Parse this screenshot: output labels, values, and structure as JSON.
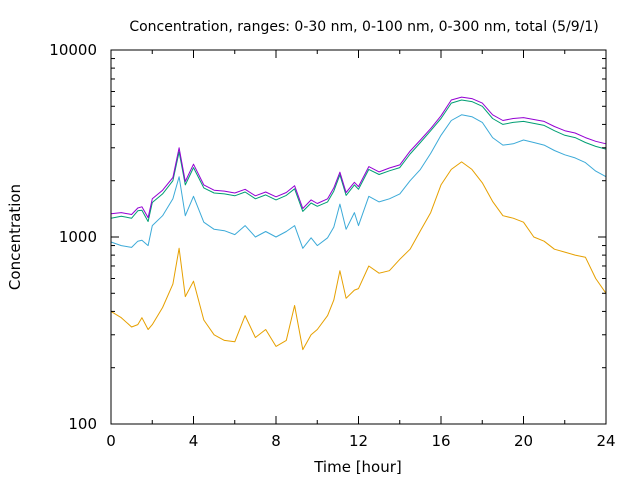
{
  "chart_data": {
    "type": "line",
    "title": "Concentration, ranges: 0-30 nm, 0-100 nm, 0-300 nm, total (5/9/1)",
    "xlabel": "Time [hour]",
    "ylabel": "Concentration",
    "xlim": [
      0,
      24
    ],
    "ylim": [
      100,
      10000
    ],
    "yscale": "log",
    "grid": false,
    "legend": "none",
    "x_ticks": [
      0,
      4,
      8,
      12,
      16,
      20,
      24
    ],
    "x_tick_labels": [
      "0",
      "4",
      "8",
      "12",
      "16",
      "20",
      "24"
    ],
    "y_ticks": [
      100,
      1000,
      10000
    ],
    "y_tick_labels": [
      "100",
      "1000",
      "10000"
    ],
    "x": [
      0,
      0.5,
      1,
      1.3,
      1.5,
      1.8,
      2,
      2.5,
      3,
      3.3,
      3.6,
      4,
      4.5,
      5,
      5.5,
      6,
      6.5,
      7,
      7.5,
      8,
      8.5,
      8.9,
      9.3,
      9.7,
      10,
      10.5,
      10.8,
      11.1,
      11.4,
      11.8,
      12,
      12.5,
      13,
      13.5,
      14,
      14.5,
      15,
      15.5,
      16,
      16.5,
      17,
      17.5,
      18,
      18.5,
      19,
      19.5,
      20,
      20.5,
      21,
      21.5,
      22,
      22.5,
      23,
      23.5,
      24
    ],
    "series": [
      {
        "color": "#e6a000",
        "values": [
          400,
          370,
          330,
          340,
          370,
          320,
          340,
          420,
          560,
          870,
          480,
          580,
          360,
          300,
          280,
          275,
          380,
          290,
          320,
          260,
          280,
          430,
          250,
          300,
          320,
          380,
          460,
          660,
          470,
          520,
          530,
          700,
          640,
          660,
          760,
          860,
          1080,
          1350,
          1900,
          2300,
          2520,
          2300,
          1950,
          1550,
          1300,
          1260,
          1200,
          1000,
          950,
          860,
          830,
          800,
          780,
          600,
          500
        ]
      },
      {
        "color": "#3caad8",
        "values": [
          940,
          900,
          880,
          950,
          960,
          900,
          1150,
          1300,
          1600,
          2100,
          1300,
          1650,
          1200,
          1100,
          1080,
          1030,
          1150,
          1000,
          1070,
          1000,
          1070,
          1150,
          870,
          990,
          900,
          990,
          1130,
          1500,
          1100,
          1350,
          1150,
          1650,
          1540,
          1600,
          1700,
          2000,
          2300,
          2800,
          3500,
          4200,
          4500,
          4400,
          4100,
          3400,
          3100,
          3150,
          3300,
          3200,
          3100,
          2900,
          2750,
          2650,
          2500,
          2250,
          2100
        ]
      },
      {
        "color": "#009e73",
        "values": [
          1260,
          1290,
          1260,
          1380,
          1390,
          1210,
          1530,
          1700,
          2000,
          2850,
          1900,
          2350,
          1830,
          1720,
          1700,
          1660,
          1740,
          1600,
          1680,
          1580,
          1670,
          1810,
          1370,
          1520,
          1460,
          1540,
          1760,
          2150,
          1670,
          1900,
          1800,
          2300,
          2160,
          2260,
          2350,
          2780,
          3200,
          3700,
          4300,
          5200,
          5400,
          5300,
          5000,
          4300,
          4000,
          4100,
          4150,
          4050,
          3950,
          3700,
          3500,
          3400,
          3200,
          3050,
          2950
        ]
      },
      {
        "color": "#9400d3",
        "values": [
          1330,
          1350,
          1320,
          1430,
          1450,
          1270,
          1600,
          1780,
          2080,
          3000,
          1980,
          2450,
          1900,
          1780,
          1760,
          1720,
          1800,
          1660,
          1740,
          1640,
          1730,
          1880,
          1420,
          1580,
          1510,
          1600,
          1830,
          2220,
          1730,
          1960,
          1860,
          2380,
          2230,
          2340,
          2430,
          2880,
          3300,
          3800,
          4450,
          5400,
          5600,
          5500,
          5200,
          4500,
          4200,
          4300,
          4350,
          4250,
          4150,
          3900,
          3700,
          3600,
          3400,
          3250,
          3150
        ]
      }
    ]
  }
}
